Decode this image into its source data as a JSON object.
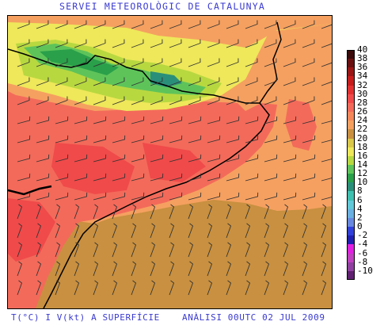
{
  "header": {
    "title": "SERVEI METEOROLÒGIC DE CATALUNYA"
  },
  "footer": {
    "left": "T(°C) I V(kt) A SUPERFÍCIE",
    "right": "ANÀLISI 00UTC 02 JUL 2009"
  },
  "map": {
    "legend_unit": "°C",
    "legend": [
      {
        "label": "40",
        "color": "#3b0a0a"
      },
      {
        "label": "38",
        "color": "#6a1010"
      },
      {
        "label": "36",
        "color": "#9a1616"
      },
      {
        "label": "34",
        "color": "#c61c1c"
      },
      {
        "label": "32",
        "color": "#e23030"
      },
      {
        "label": "30",
        "color": "#f04a4a"
      },
      {
        "label": "28",
        "color": "#f36a5a"
      },
      {
        "label": "26",
        "color": "#f5875a"
      },
      {
        "label": "24",
        "color": "#f5a060"
      },
      {
        "label": "22",
        "color": "#c89040"
      },
      {
        "label": "20",
        "color": "#d9c84a"
      },
      {
        "label": "18",
        "color": "#eee85a"
      },
      {
        "label": "16",
        "color": "#b8d840"
      },
      {
        "label": "14",
        "color": "#5ec45a"
      },
      {
        "label": "12",
        "color": "#2aa04a"
      },
      {
        "label": "10",
        "color": "#2a8f7a"
      },
      {
        "label": "8",
        "color": "#3ec0b0"
      },
      {
        "label": "6",
        "color": "#60c8d8"
      },
      {
        "label": "4",
        "color": "#6ab0e0"
      },
      {
        "label": "2",
        "color": "#6888e0"
      },
      {
        "label": "0",
        "color": "#3040d8"
      },
      {
        "label": "-2",
        "color": "#2020b0"
      },
      {
        "label": "-4",
        "color": "#e020e0"
      },
      {
        "label": "-6",
        "color": "#c040c0"
      },
      {
        "label": "-8",
        "color": "#9040a0"
      },
      {
        "label": "-10",
        "color": "#602070"
      }
    ]
  }
}
